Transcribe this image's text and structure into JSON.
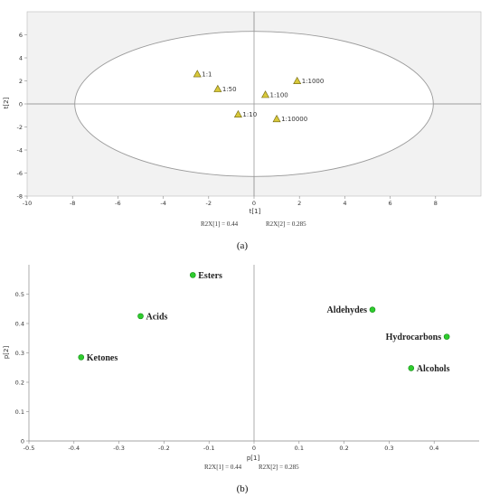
{
  "chart_data": [
    {
      "type": "scatter",
      "panel_label": "(a)",
      "xlabel": "t[1]",
      "ylabel": "t[2]",
      "xlim": [
        -10,
        10
      ],
      "ylim": [
        -8,
        8
      ],
      "xticks": [
        -10,
        -8,
        -6,
        -4,
        -2,
        0,
        2,
        4,
        6,
        8
      ],
      "yticks": [
        -8,
        -6,
        -4,
        -2,
        0,
        2,
        4,
        6
      ],
      "grid": false,
      "background": "#f2f2f2",
      "marker": "triangle",
      "marker_color": "#d8c83a",
      "ellipse": {
        "center": [
          0,
          0
        ],
        "semi_axes": [
          7.9,
          6.3
        ]
      },
      "r2x1_label": "R2X[1] = 0.44",
      "r2x2_label": "R2X[2] = 0.285",
      "points": [
        {
          "label": "1:1",
          "x": -2.5,
          "y": 2.6
        },
        {
          "label": "1:50",
          "x": -1.6,
          "y": 1.3
        },
        {
          "label": "1:10",
          "x": -0.7,
          "y": -0.9
        },
        {
          "label": "1:100",
          "x": 0.5,
          "y": 0.8
        },
        {
          "label": "1:1000",
          "x": 1.9,
          "y": 2.0
        },
        {
          "label": "1:10000",
          "x": 1.0,
          "y": -1.3
        }
      ]
    },
    {
      "type": "scatter",
      "panel_label": "(b)",
      "xlabel": "p[1]",
      "ylabel": "p[2]",
      "xlim": [
        -0.5,
        0.5
      ],
      "ylim": [
        0,
        0.6
      ],
      "xticks": [
        -0.5,
        -0.4,
        -0.3,
        -0.2,
        -0.1,
        0,
        0.1,
        0.2,
        0.3,
        0.4
      ],
      "yticks": [
        0,
        0.1,
        0.2,
        0.3,
        0.4,
        0.5
      ],
      "grid": false,
      "background": "#ffffff",
      "marker": "circle",
      "marker_color": "#2ecc2e",
      "r2x1_label": "R2X[1] = 0.44",
      "r2x2_label": "R2X[2] = 0.285",
      "points": [
        {
          "label": "Esters",
          "x": -0.136,
          "y": 0.565,
          "side": "right"
        },
        {
          "label": "Acids",
          "x": -0.252,
          "y": 0.425,
          "side": "right"
        },
        {
          "label": "Ketones",
          "x": -0.384,
          "y": 0.285,
          "side": "right"
        },
        {
          "label": "Aldehydes",
          "x": 0.263,
          "y": 0.447,
          "side": "left"
        },
        {
          "label": "Hydrocarbons",
          "x": 0.428,
          "y": 0.355,
          "side": "left"
        },
        {
          "label": "Alcohols",
          "x": 0.349,
          "y": 0.248,
          "side": "right"
        }
      ]
    }
  ]
}
